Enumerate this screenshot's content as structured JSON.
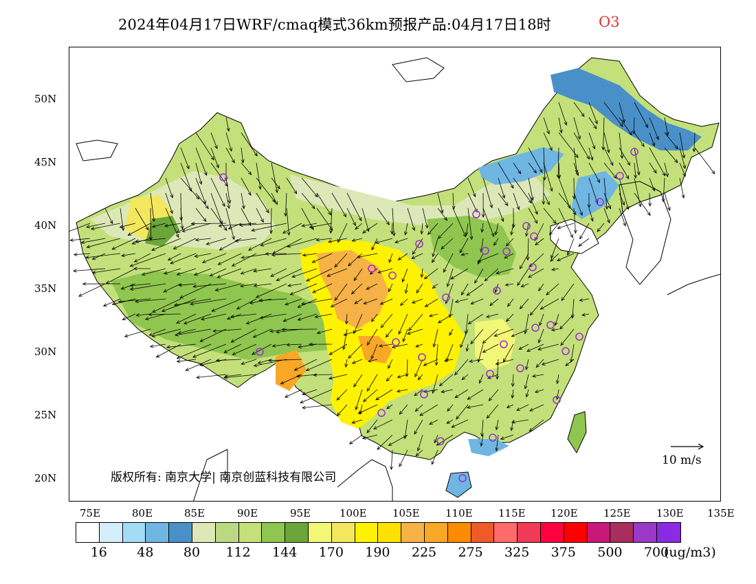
{
  "title": {
    "main": "2024年04月17日WRF/cmaq模式36km预报产品:04月17日18时",
    "species": "O3",
    "species_color": "#e0322d"
  },
  "axes": {
    "latitude_ticks": [
      "50N",
      "45N",
      "40N",
      "35N",
      "30N",
      "25N",
      "20N"
    ],
    "longitude_ticks": [
      "75E",
      "80E",
      "85E",
      "90E",
      "95E",
      "100E",
      "105E",
      "110E",
      "115E",
      "120E",
      "125E",
      "130E",
      "135E"
    ]
  },
  "legend": {
    "colors": [
      "#ffffff",
      "#d4eefb",
      "#a3dcf5",
      "#6fb6e2",
      "#4a90c8",
      "#dde8b8",
      "#bcd882",
      "#c3e07a",
      "#8fc64f",
      "#6ba63a",
      "#f3f777",
      "#f3e85d",
      "#fff200",
      "#ffe000",
      "#f6b247",
      "#f8a826",
      "#fb8c00",
      "#f05a28",
      "#ff6b6b",
      "#f03a56",
      "#ff0040",
      "#ff0000",
      "#c8187a",
      "#a82e5e",
      "#9a39c8",
      "#8a2be2"
    ],
    "labels": [
      "16",
      "48",
      "80",
      "112",
      "144",
      "170",
      "190",
      "225",
      "275",
      "325",
      "375",
      "500",
      "700"
    ],
    "unit": "(ug/m3)"
  },
  "reference_vector": {
    "label": "10 m/s"
  },
  "copyright": "版权所有: 南京大学| 南京创蓝科技有限公司",
  "map_colors": {
    "outline": "#000000",
    "station_marker": "#9b30d0",
    "wind_arrow": "#000000"
  }
}
